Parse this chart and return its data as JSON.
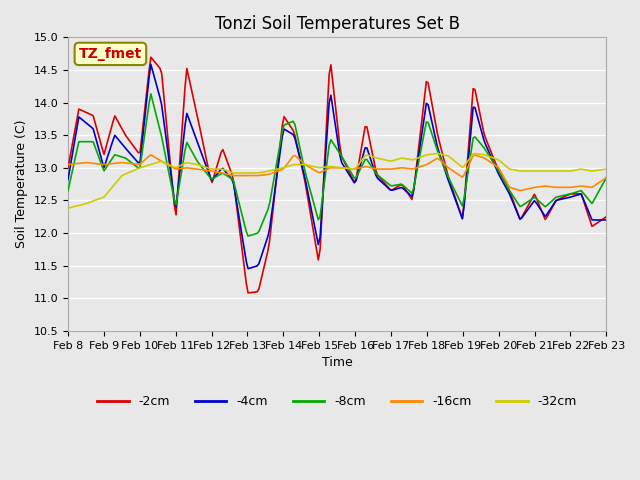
{
  "title": "Tonzi Soil Temperatures Set B",
  "xlabel": "Time",
  "ylabel": "Soil Temperature (C)",
  "ylim": [
    10.5,
    15.0
  ],
  "annotation": "TZ_fmet",
  "series_labels": [
    "-2cm",
    "-4cm",
    "-8cm",
    "-16cm",
    "-32cm"
  ],
  "series_colors": [
    "#dd0000",
    "#0000cc",
    "#00aa00",
    "#ff8800",
    "#cccc00"
  ],
  "xtick_labels": [
    "Feb 8",
    "Feb 9",
    "Feb 10",
    "Feb 11",
    "Feb 12",
    "Feb 13",
    "Feb 14",
    "Feb 15",
    "Feb 16",
    "Feb 17",
    "Feb 18",
    "Feb 19",
    "Feb 20",
    "Feb 21",
    "Feb 22",
    "Feb 23"
  ],
  "bg_color": "#e8e8e8",
  "plot_bg_color": "#e8e8e8",
  "grid_color": "#ffffff",
  "linewidth": 1.2
}
